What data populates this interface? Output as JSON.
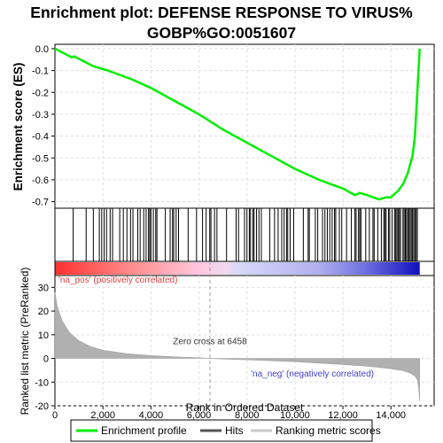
{
  "chart_data": {
    "type": "line",
    "title_line1": "Enrichment plot: DEFENSE RESPONSE TO VIRUS%",
    "title_line2": "GOBP%GO:0051607",
    "es_panel": {
      "ylabel": "Enrichment score (ES)",
      "ylim": [
        -0.73,
        0.02
      ],
      "yticks": [
        "0.0",
        "-0.1",
        "-0.2",
        "-0.3",
        "-0.4",
        "-0.5",
        "-0.6",
        "-0.7"
      ],
      "ytick_values": [
        0.0,
        -0.1,
        -0.2,
        -0.3,
        -0.4,
        -0.5,
        -0.6,
        -0.7
      ],
      "grid": true,
      "series": [
        {
          "name": "Enrichment profile",
          "color": "#00ee00",
          "x": [
            0,
            700,
            800,
            1600,
            2200,
            3200,
            4000,
            5000,
            6000,
            7000,
            8000,
            9000,
            10000,
            11000,
            11500,
            12000,
            12500,
            12700,
            13000,
            13500,
            13800,
            14000,
            14300,
            14500,
            14700,
            14900,
            15000,
            15100,
            15200
          ],
          "y": [
            0.0,
            -0.04,
            -0.035,
            -0.08,
            -0.1,
            -0.14,
            -0.18,
            -0.24,
            -0.3,
            -0.37,
            -0.43,
            -0.49,
            -0.55,
            -0.6,
            -0.62,
            -0.64,
            -0.67,
            -0.66,
            -0.67,
            -0.69,
            -0.68,
            -0.68,
            -0.65,
            -0.62,
            -0.57,
            -0.49,
            -0.4,
            -0.2,
            0.0
          ]
        }
      ]
    },
    "hits": [
      760,
      1300,
      1600,
      1850,
      1950,
      2050,
      2150,
      2300,
      2400,
      2700,
      2850,
      3000,
      3150,
      3250,
      3450,
      3550,
      3700,
      3800,
      3900,
      3950,
      4000,
      4100,
      4200,
      4250,
      4600,
      4800,
      4900,
      4950,
      5050,
      5150,
      5550,
      5900,
      6150,
      6300,
      6450,
      6500,
      6650,
      6750,
      7150,
      7550,
      7650,
      7900,
      8000,
      8100,
      8150,
      8250,
      8300,
      8400,
      8500,
      8600,
      8950,
      9150,
      9300,
      9450,
      9550,
      9650,
      9700,
      9800,
      9950,
      10350,
      10550,
      10600,
      10850,
      10950,
      11150,
      11250,
      11350,
      11450,
      11550,
      11650,
      11700,
      11850,
      11950,
      12150,
      12350,
      12500,
      12550,
      12650,
      12700,
      12750,
      12950,
      13100,
      13250,
      13300,
      13450,
      13600,
      13700,
      13750,
      13800,
      13900,
      13950,
      14050,
      14150,
      14200,
      14250,
      14300,
      14350,
      14400,
      14500,
      14550,
      14600,
      14650,
      14700,
      14750,
      14800,
      14850,
      14900,
      14950,
      15000,
      15050,
      15100
    ],
    "rank_panel": {
      "ylabel": "Ranked list metric (PreRanked)",
      "xlabel": "Rank in Ordered Dataset",
      "xlim": [
        0,
        15800
      ],
      "ylim": [
        -20,
        35
      ],
      "xticks": [
        "0",
        "2,000",
        "4,000",
        "6,000",
        "8,000",
        "10,000",
        "12,000",
        "14,000"
      ],
      "xtick_values": [
        0,
        2000,
        4000,
        6000,
        8000,
        10000,
        12000,
        14000
      ],
      "yticks": [
        "30",
        "20",
        "10",
        "0",
        "-10",
        "-20"
      ],
      "ytick_values": [
        30,
        20,
        10,
        0,
        -10,
        -20
      ],
      "zero_cross_rank": 6458,
      "zero_cross_label": "Zero cross at 6458",
      "pos_label": "'na_pos' (positively correlated)",
      "neg_label": "'na_neg' (negatively correlated)",
      "metric_x": [
        0,
        100,
        300,
        600,
        1000,
        1500,
        2000,
        3000,
        4000,
        5000,
        6000,
        6458,
        7000,
        8000,
        9000,
        10000,
        11000,
        12000,
        13000,
        13500,
        14000,
        14500,
        14800,
        15000,
        15100,
        15150,
        15200
      ],
      "metric_y": [
        28,
        22,
        16,
        11,
        7.5,
        5,
        3.5,
        2,
        1.2,
        0.7,
        0.3,
        0,
        -0.3,
        -0.6,
        -1,
        -1.4,
        -2,
        -2.6,
        -3.3,
        -3.8,
        -4.4,
        -5.2,
        -6.2,
        -7.5,
        -9,
        -12,
        -18
      ]
    },
    "heatmap_bar": {
      "positive_color": "#ff0000",
      "negative_color": "#0000ff",
      "total_ranks": 15200
    },
    "legend": {
      "placement": "bottom",
      "entries": [
        {
          "label": "Enrichment profile",
          "color": "#00ee00"
        },
        {
          "label": "Hits",
          "color": "#000000"
        },
        {
          "label": "Ranking metric scores",
          "color": "#c0c0c0"
        }
      ]
    }
  }
}
